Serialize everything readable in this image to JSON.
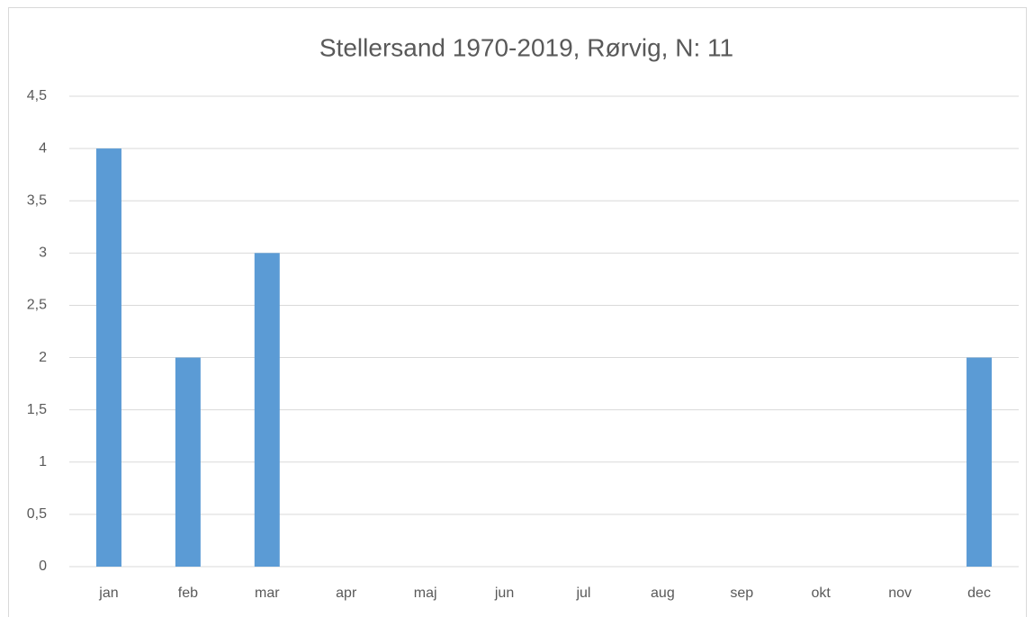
{
  "chart_data": {
    "type": "bar",
    "title": "Stellersand 1970-2019, Rørvig, N: 11",
    "categories": [
      "jan",
      "feb",
      "mar",
      "apr",
      "maj",
      "jun",
      "jul",
      "aug",
      "sep",
      "okt",
      "nov",
      "dec"
    ],
    "values": [
      4,
      2,
      3,
      0,
      0,
      0,
      0,
      0,
      0,
      0,
      0,
      2
    ],
    "color": "#5b9bd5",
    "ylim": [
      0,
      4.5
    ],
    "yticks": [
      0,
      {
        "value": 0.5,
        "label": "0,5"
      },
      1,
      {
        "value": 1.5,
        "label": "1,5"
      },
      2,
      {
        "value": 2.5,
        "label": "2,5"
      },
      3,
      {
        "value": 3.5,
        "label": "3,5"
      },
      4,
      {
        "value": 4.5,
        "label": "4,5"
      }
    ],
    "grid": true
  }
}
